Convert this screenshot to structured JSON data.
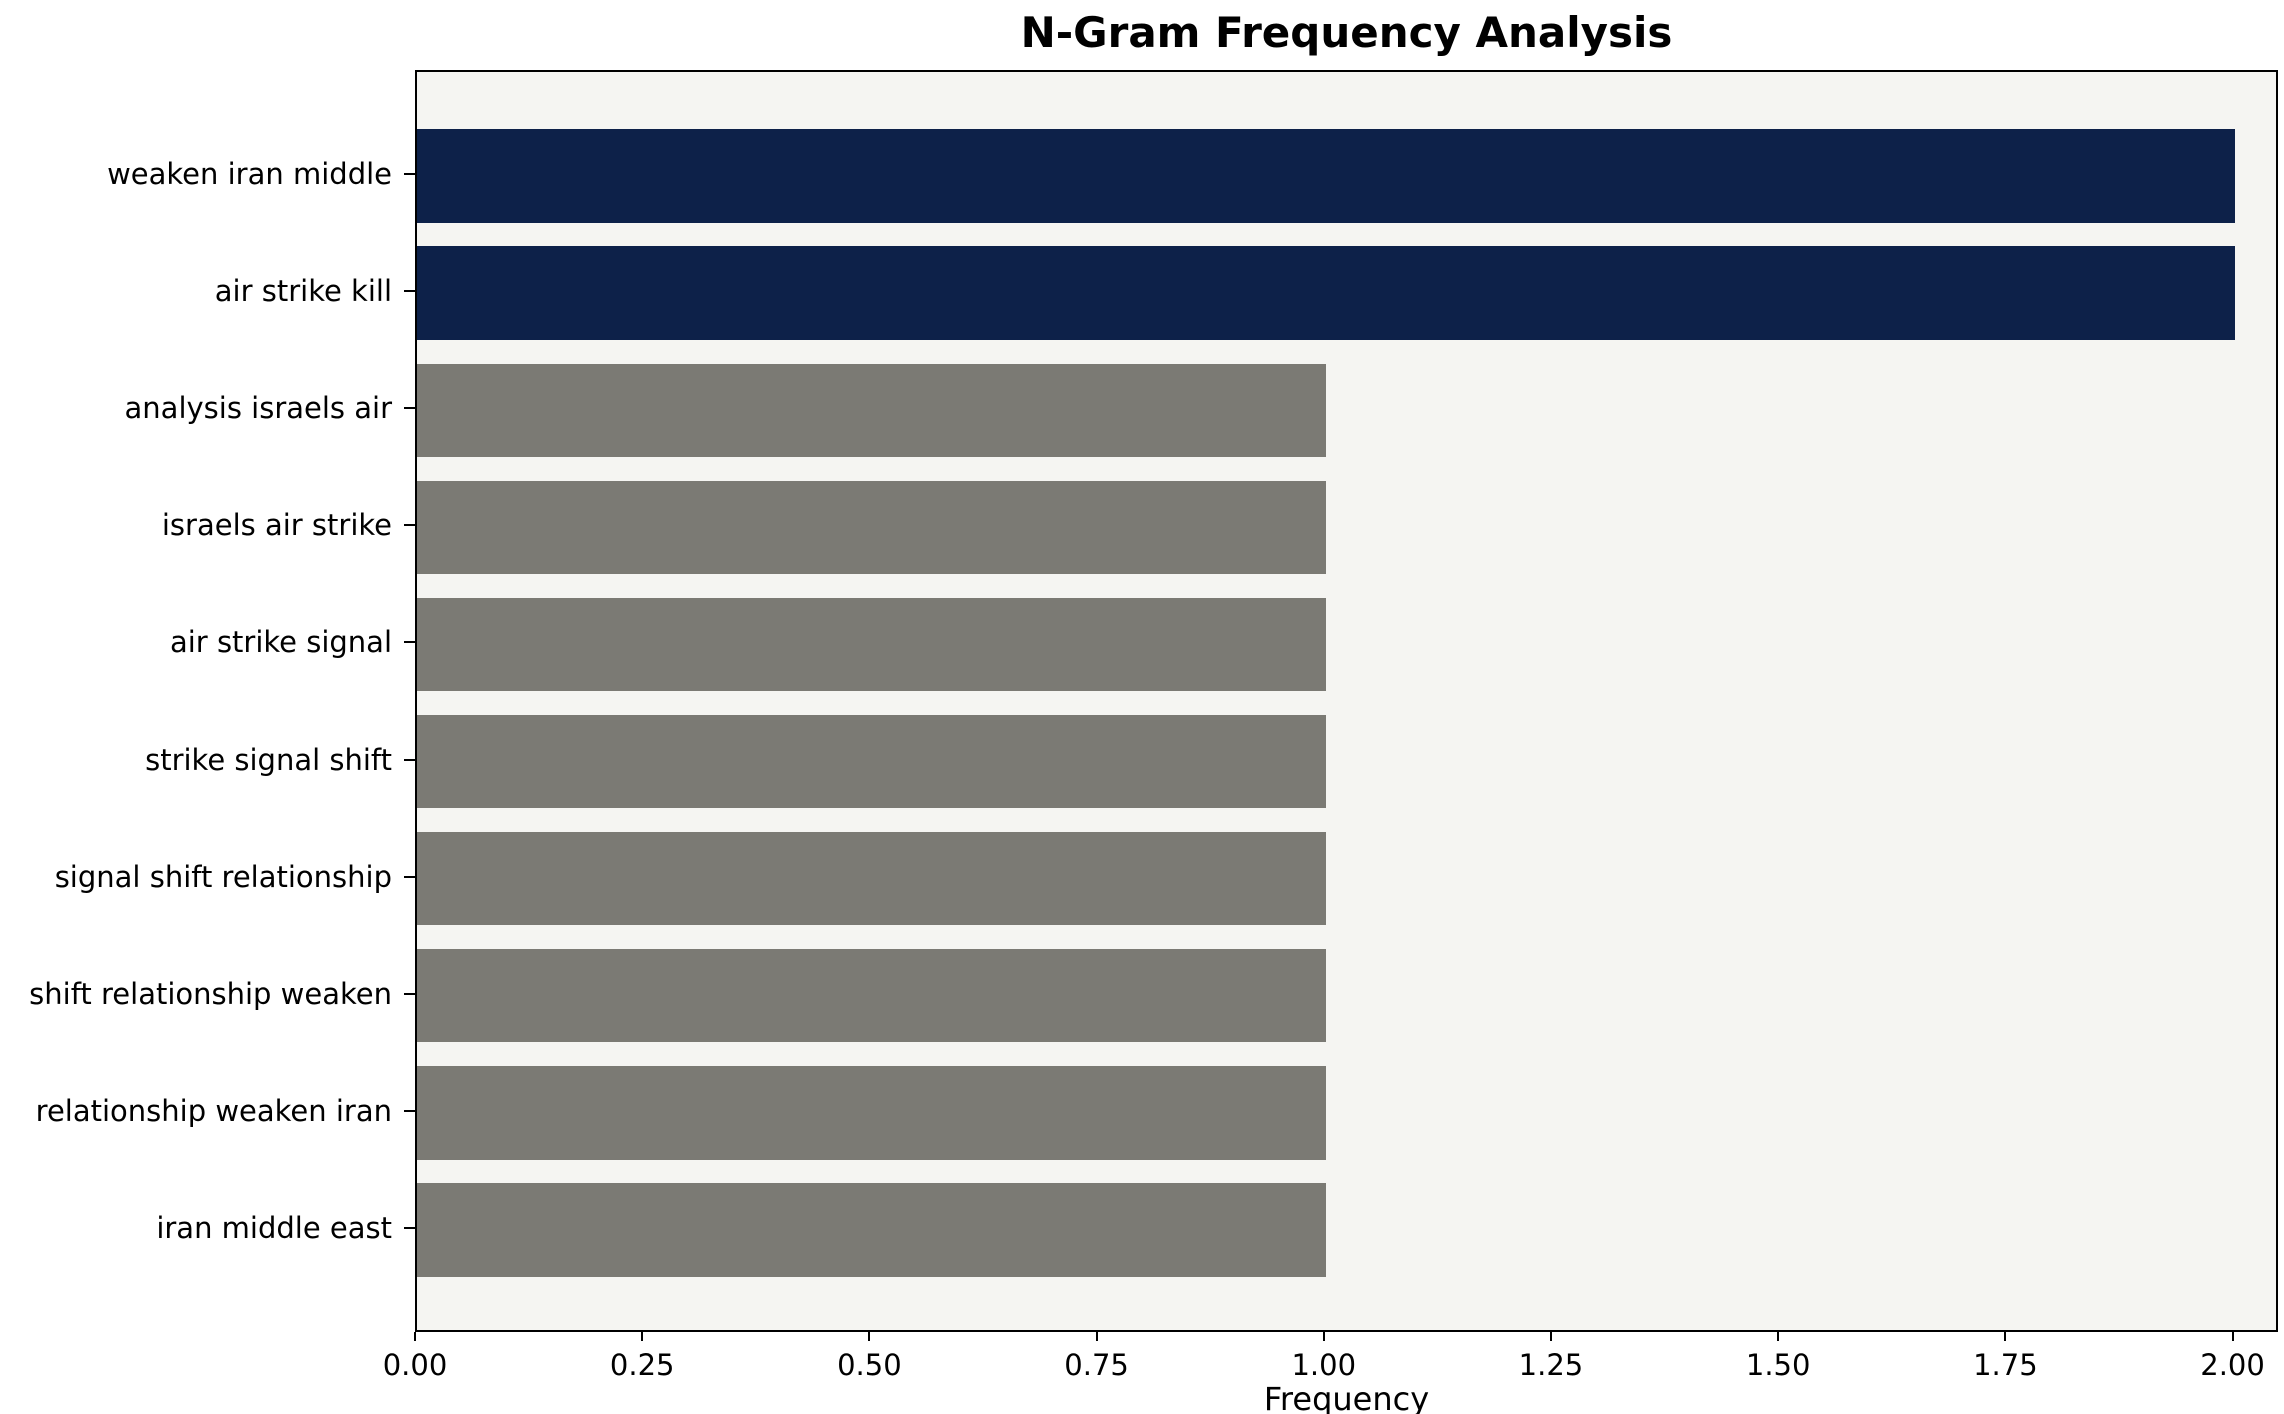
{
  "chart_data": {
    "type": "bar",
    "orientation": "horizontal",
    "title": "N-Gram Frequency Analysis",
    "xlabel": "Frequency",
    "ylabel": "",
    "categories": [
      "weaken iran middle",
      "air strike kill",
      "analysis israels air",
      "israels air strike",
      "air strike signal",
      "strike signal shift",
      "signal shift relationship",
      "shift relationship weaken",
      "relationship weaken iran",
      "iran middle east"
    ],
    "values": [
      2,
      2,
      1,
      1,
      1,
      1,
      1,
      1,
      1,
      1
    ],
    "x_tick_labels": [
      "0.00",
      "0.25",
      "0.50",
      "0.75",
      "1.00",
      "1.25",
      "1.50",
      "1.75",
      "2.00"
    ],
    "xlim": [
      0,
      2.05
    ],
    "bar_colors": [
      "#0d2149",
      "#0d2149",
      "#7b7a74",
      "#7b7a74",
      "#7b7a74",
      "#7b7a74",
      "#7b7a74",
      "#7b7a74",
      "#7b7a74",
      "#7b7a74"
    ],
    "colors": {
      "highlight": "#0d2149",
      "default": "#7b7a74",
      "plot_bg": "#f5f5f2",
      "page_bg": "#ffffff",
      "spine": "#000000",
      "text": "#000000"
    },
    "grid": false,
    "legend": null
  }
}
